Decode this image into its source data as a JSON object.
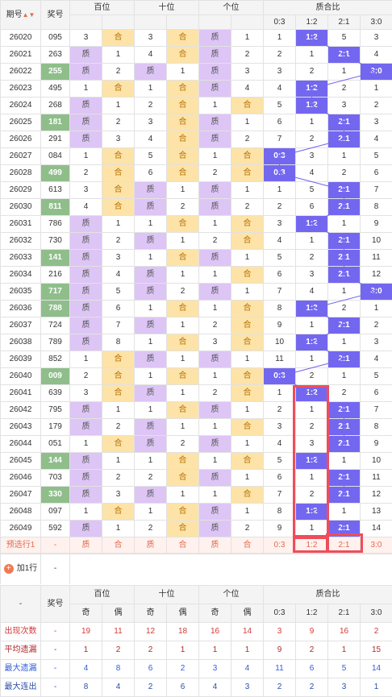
{
  "header": {
    "issue_label": "期号",
    "prize_label": "奖号",
    "group_hundreds": "百位",
    "group_tens": "十位",
    "group_units": "个位",
    "group_ratio": "质合比",
    "ratio_cols": [
      "0:3",
      "1:2",
      "2:1",
      "3:0"
    ]
  },
  "colors": {
    "purple": "#ddc5f5",
    "yellow": "#fde3a7",
    "green": "#8fbe8b",
    "blue": "#7367f0",
    "red": "#ef4d5b"
  },
  "rows": [
    {
      "issue": "26020",
      "prize": "095",
      "green": false,
      "h": [
        "3",
        "合"
      ],
      "t": [
        "3",
        "合"
      ],
      "u": [
        "质",
        "1"
      ],
      "r": [
        "1",
        "1:2",
        "5",
        "3"
      ]
    },
    {
      "issue": "26021",
      "prize": "263",
      "green": false,
      "h": [
        "质",
        "1"
      ],
      "t": [
        "4",
        "合"
      ],
      "u": [
        "质",
        "2"
      ],
      "r": [
        "2",
        "1",
        "2:1",
        "4"
      ]
    },
    {
      "issue": "26022",
      "prize": "255",
      "green": true,
      "h": [
        "质",
        "2"
      ],
      "t": [
        "质",
        "1"
      ],
      "u": [
        "质",
        "3"
      ],
      "r": [
        "3",
        "2",
        "1",
        "3:0"
      ]
    },
    {
      "issue": "26023",
      "prize": "495",
      "green": false,
      "h": [
        "1",
        "合"
      ],
      "t": [
        "1",
        "合"
      ],
      "u": [
        "质",
        "4"
      ],
      "r": [
        "4",
        "1:2",
        "2",
        "1"
      ]
    },
    {
      "issue": "26024",
      "prize": "268",
      "green": false,
      "h": [
        "质",
        "1"
      ],
      "t": [
        "2",
        "合"
      ],
      "u": [
        "1",
        "合"
      ],
      "r": [
        "5",
        "1:2",
        "3",
        "2"
      ]
    },
    {
      "issue": "26025",
      "prize": "181",
      "green": true,
      "h": [
        "质",
        "2"
      ],
      "t": [
        "3",
        "合"
      ],
      "u": [
        "质",
        "1"
      ],
      "r": [
        "6",
        "1",
        "2:1",
        "3"
      ]
    },
    {
      "issue": "26026",
      "prize": "291",
      "green": false,
      "h": [
        "质",
        "3"
      ],
      "t": [
        "4",
        "合"
      ],
      "u": [
        "质",
        "2"
      ],
      "r": [
        "7",
        "2",
        "2:1",
        "4"
      ]
    },
    {
      "issue": "26027",
      "prize": "084",
      "green": false,
      "h": [
        "1",
        "合"
      ],
      "t": [
        "5",
        "合"
      ],
      "u": [
        "1",
        "合"
      ],
      "r": [
        "0:3",
        "3",
        "1",
        "5"
      ]
    },
    {
      "issue": "26028",
      "prize": "499",
      "green": true,
      "h": [
        "2",
        "合"
      ],
      "t": [
        "6",
        "合"
      ],
      "u": [
        "2",
        "合"
      ],
      "r": [
        "0:3",
        "4",
        "2",
        "6"
      ]
    },
    {
      "issue": "26029",
      "prize": "613",
      "green": false,
      "h": [
        "3",
        "合"
      ],
      "t": [
        "质",
        "1"
      ],
      "u": [
        "质",
        "1"
      ],
      "r": [
        "1",
        "5",
        "2:1",
        "7"
      ]
    },
    {
      "issue": "26030",
      "prize": "811",
      "green": true,
      "h": [
        "4",
        "合"
      ],
      "t": [
        "质",
        "2"
      ],
      "u": [
        "质",
        "2"
      ],
      "r": [
        "2",
        "6",
        "2:1",
        "8"
      ]
    },
    {
      "issue": "26031",
      "prize": "786",
      "green": false,
      "h": [
        "质",
        "1"
      ],
      "t": [
        "1",
        "合"
      ],
      "u": [
        "1",
        "合"
      ],
      "r": [
        "3",
        "1:2",
        "1",
        "9"
      ]
    },
    {
      "issue": "26032",
      "prize": "730",
      "green": false,
      "h": [
        "质",
        "2"
      ],
      "t": [
        "质",
        "1"
      ],
      "u": [
        "2",
        "合"
      ],
      "r": [
        "4",
        "1",
        "2:1",
        "10"
      ]
    },
    {
      "issue": "26033",
      "prize": "141",
      "green": true,
      "h": [
        "质",
        "3"
      ],
      "t": [
        "1",
        "合"
      ],
      "u": [
        "质",
        "1"
      ],
      "r": [
        "5",
        "2",
        "2:1",
        "11"
      ]
    },
    {
      "issue": "26034",
      "prize": "216",
      "green": false,
      "h": [
        "质",
        "4"
      ],
      "t": [
        "质",
        "1"
      ],
      "u": [
        "1",
        "合"
      ],
      "r": [
        "6",
        "3",
        "2:1",
        "12"
      ]
    },
    {
      "issue": "26035",
      "prize": "717",
      "green": true,
      "h": [
        "质",
        "5"
      ],
      "t": [
        "质",
        "2"
      ],
      "u": [
        "质",
        "1"
      ],
      "r": [
        "7",
        "4",
        "1",
        "3:0"
      ]
    },
    {
      "issue": "26036",
      "prize": "788",
      "green": true,
      "h": [
        "质",
        "6"
      ],
      "t": [
        "1",
        "合"
      ],
      "u": [
        "1",
        "合"
      ],
      "r": [
        "8",
        "1:2",
        "2",
        "1"
      ]
    },
    {
      "issue": "26037",
      "prize": "724",
      "green": false,
      "h": [
        "质",
        "7"
      ],
      "t": [
        "质",
        "1"
      ],
      "u": [
        "2",
        "合"
      ],
      "r": [
        "9",
        "1",
        "2:1",
        "2"
      ]
    },
    {
      "issue": "26038",
      "prize": "789",
      "green": false,
      "h": [
        "质",
        "8"
      ],
      "t": [
        "1",
        "合"
      ],
      "u": [
        "3",
        "合"
      ],
      "r": [
        "10",
        "1:2",
        "1",
        "3"
      ]
    },
    {
      "issue": "26039",
      "prize": "852",
      "green": false,
      "h": [
        "1",
        "合"
      ],
      "t": [
        "质",
        "1"
      ],
      "u": [
        "质",
        "1"
      ],
      "r": [
        "11",
        "1",
        "2:1",
        "4"
      ]
    },
    {
      "issue": "26040",
      "prize": "009",
      "green": true,
      "h": [
        "2",
        "合"
      ],
      "t": [
        "1",
        "合"
      ],
      "u": [
        "1",
        "合"
      ],
      "r": [
        "0:3",
        "2",
        "1",
        "5"
      ]
    },
    {
      "issue": "26041",
      "prize": "639",
      "green": false,
      "h": [
        "3",
        "合"
      ],
      "t": [
        "质",
        "1"
      ],
      "u": [
        "2",
        "合"
      ],
      "r": [
        "1",
        "1:2",
        "2",
        "6"
      ]
    },
    {
      "issue": "26042",
      "prize": "795",
      "green": false,
      "h": [
        "质",
        "1"
      ],
      "t": [
        "1",
        "合"
      ],
      "u": [
        "质",
        "1"
      ],
      "r": [
        "2",
        "1",
        "2:1",
        "7"
      ]
    },
    {
      "issue": "26043",
      "prize": "179",
      "green": false,
      "h": [
        "质",
        "2"
      ],
      "t": [
        "质",
        "1"
      ],
      "u": [
        "1",
        "合"
      ],
      "r": [
        "3",
        "2",
        "2:1",
        "8"
      ]
    },
    {
      "issue": "26044",
      "prize": "051",
      "green": false,
      "h": [
        "1",
        "合"
      ],
      "t": [
        "质",
        "2"
      ],
      "u": [
        "质",
        "1"
      ],
      "r": [
        "4",
        "3",
        "2:1",
        "9"
      ]
    },
    {
      "issue": "26045",
      "prize": "144",
      "green": true,
      "h": [
        "质",
        "1"
      ],
      "t": [
        "1",
        "合"
      ],
      "u": [
        "1",
        "合"
      ],
      "r": [
        "5",
        "1:2",
        "1",
        "10"
      ]
    },
    {
      "issue": "26046",
      "prize": "703",
      "green": false,
      "h": [
        "质",
        "2"
      ],
      "t": [
        "2",
        "合"
      ],
      "u": [
        "质",
        "1"
      ],
      "r": [
        "6",
        "1",
        "2:1",
        "11"
      ]
    },
    {
      "issue": "26047",
      "prize": "330",
      "green": true,
      "h": [
        "质",
        "3"
      ],
      "t": [
        "质",
        "1"
      ],
      "u": [
        "1",
        "合"
      ],
      "r": [
        "7",
        "2",
        "2:1",
        "12"
      ]
    },
    {
      "issue": "26048",
      "prize": "097",
      "green": false,
      "h": [
        "1",
        "合"
      ],
      "t": [
        "1",
        "合"
      ],
      "u": [
        "质",
        "1"
      ],
      "r": [
        "8",
        "1:2",
        "1",
        "13"
      ]
    },
    {
      "issue": "26049",
      "prize": "592",
      "green": false,
      "h": [
        "质",
        "1"
      ],
      "t": [
        "2",
        "合"
      ],
      "u": [
        "质",
        "2"
      ],
      "r": [
        "9",
        "1",
        "2:1",
        "14"
      ]
    }
  ],
  "preselect": {
    "label": "预选行1",
    "prize": "-",
    "cells": [
      "质",
      "合",
      "质",
      "合",
      "质",
      "合",
      "0:3",
      "1:2",
      "2:1",
      "3:0"
    ]
  },
  "add_row": {
    "label": "加1行",
    "icon": "plus-icon",
    "dash": "-"
  },
  "stats": {
    "dash": "-",
    "prize_label": "奖号",
    "sub_labels": [
      "奇",
      "偶",
      "奇",
      "偶",
      "奇",
      "偶",
      "0:3",
      "1:2",
      "2:1",
      "3:0"
    ],
    "rows": [
      {
        "label": "出现次数",
        "prize": "-",
        "values": [
          "19",
          "11",
          "12",
          "18",
          "16",
          "14",
          "3",
          "9",
          "16",
          "2"
        ]
      },
      {
        "label": "平均遗漏",
        "prize": "-",
        "values": [
          "1",
          "2",
          "2",
          "1",
          "1",
          "1",
          "9",
          "2",
          "1",
          "15"
        ]
      },
      {
        "label": "最大遗漏",
        "prize": "-",
        "values": [
          "4",
          "8",
          "6",
          "2",
          "3",
          "4",
          "11",
          "6",
          "5",
          "14"
        ]
      },
      {
        "label": "最大连出",
        "prize": "-",
        "values": [
          "8",
          "4",
          "2",
          "6",
          "4",
          "3",
          "2",
          "2",
          "3",
          "1"
        ]
      }
    ]
  }
}
